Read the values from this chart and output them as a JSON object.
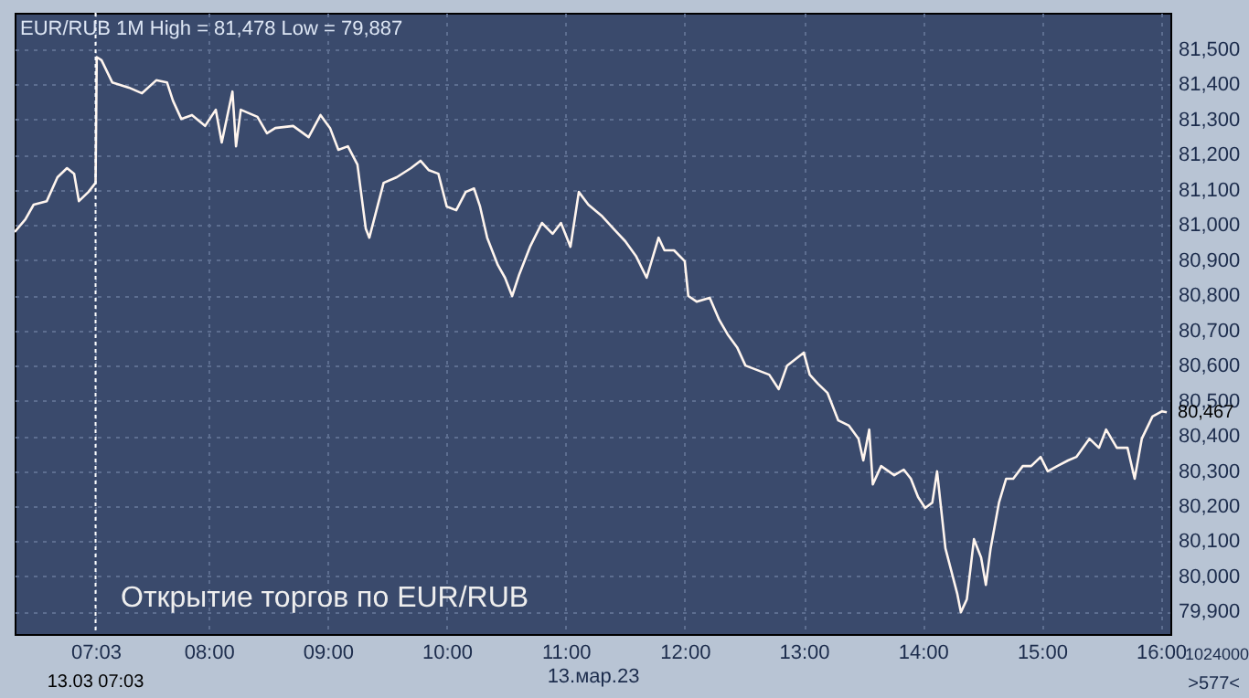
{
  "chart_data": {
    "type": "line",
    "title": "EUR/RUB 1M High = 81,478 Low = 79,887",
    "xlabel": "13.мар.23",
    "x": [
      6.37,
      6.46,
      6.53,
      6.64,
      6.73,
      6.81,
      6.87,
      6.91,
      6.99,
      7.05,
      7.06,
      7.1,
      7.19,
      7.33,
      7.44,
      7.56,
      7.65,
      7.7,
      7.77,
      7.86,
      7.97,
      8.06,
      8.11,
      8.2,
      8.23,
      8.27,
      8.41,
      8.49,
      8.56,
      8.71,
      8.84,
      8.94,
      9.02,
      9.09,
      9.17,
      9.25,
      9.32,
      9.35,
      9.41,
      9.47,
      9.58,
      9.7,
      9.78,
      9.85,
      9.93,
      10.0,
      10.08,
      10.16,
      10.23,
      10.28,
      10.34,
      10.43,
      10.49,
      10.55,
      10.61,
      10.7,
      10.8,
      10.89,
      10.96,
      11.04,
      11.11,
      11.19,
      11.3,
      11.4,
      11.5,
      11.59,
      11.68,
      11.78,
      11.83,
      11.91,
      12.0,
      12.03,
      12.1,
      12.21,
      12.29,
      12.36,
      12.44,
      12.51,
      12.71,
      12.79,
      12.86,
      13.0,
      13.05,
      13.12,
      13.2,
      13.29,
      13.38,
      13.46,
      13.5,
      13.55,
      13.58,
      13.65,
      13.76,
      13.84,
      13.9,
      13.96,
      14.02,
      14.08,
      14.12,
      14.19,
      14.23,
      14.29,
      14.32,
      14.37,
      14.43,
      14.49,
      14.53,
      14.57,
      14.64,
      14.7,
      14.76,
      14.84,
      14.91,
      14.99,
      15.05,
      15.13,
      15.22,
      15.29,
      15.4,
      15.48,
      15.54,
      15.63,
      15.72,
      15.78,
      15.84,
      15.93,
      16.01,
      16.05
    ],
    "series": [
      {
        "color": "#fff5ee",
        "values": [
          80980,
          81016,
          81058,
          81068,
          81136,
          81162,
          81146,
          81068,
          81094,
          81120,
          81478,
          81469,
          81406,
          81391,
          81375,
          81412,
          81406,
          81354,
          81302,
          81313,
          81282,
          81328,
          81235,
          81380,
          81224,
          81328,
          81308,
          81261,
          81276,
          81282,
          81250,
          81313,
          81276,
          81214,
          81224,
          81172,
          80990,
          80964,
          81042,
          81120,
          81136,
          81162,
          81183,
          81156,
          81146,
          81053,
          81042,
          81094,
          81104,
          81053,
          80964,
          80886,
          80850,
          80798,
          80860,
          80938,
          81006,
          80975,
          81006,
          80938,
          81094,
          81058,
          81027,
          80990,
          80954,
          80912,
          80850,
          80964,
          80928,
          80928,
          80897,
          80798,
          80782,
          80793,
          80730,
          80689,
          80652,
          80600,
          80574,
          80533,
          80600,
          80637,
          80574,
          80548,
          80522,
          80444,
          80429,
          80392,
          80330,
          80418,
          80262,
          80314,
          80288,
          80304,
          80278,
          80226,
          80195,
          80210,
          80299,
          80080,
          80028,
          79950,
          79898,
          79935,
          80106,
          80054,
          79976,
          80080,
          80210,
          80278,
          80278,
          80314,
          80314,
          80340,
          80299,
          80314,
          80330,
          80340,
          80392,
          80366,
          80418,
          80366,
          80366,
          80278,
          80392,
          80455,
          80470,
          80467
        ]
      }
    ],
    "xlim": [
      6.37,
      16.08
    ],
    "xticks": [
      {
        "value": 7.05,
        "label": "07:03"
      },
      {
        "value": 8,
        "label": "08:00"
      },
      {
        "value": 9,
        "label": "09:00"
      },
      {
        "value": 10,
        "label": "10:00"
      },
      {
        "value": 11,
        "label": "11:00"
      },
      {
        "value": 12,
        "label": "12:00"
      },
      {
        "value": 13,
        "label": "13:00"
      },
      {
        "value": 14,
        "label": "14:00"
      },
      {
        "value": 15,
        "label": "15:00"
      },
      {
        "value": 16,
        "label": "16:00"
      }
    ],
    "ylim": [
      79836,
      81604
    ],
    "yticks": [
      {
        "value": 79900,
        "label": "79,900"
      },
      {
        "value": 80000,
        "label": "80,000"
      },
      {
        "value": 80100,
        "label": "80,100"
      },
      {
        "value": 80200,
        "label": "80,200"
      },
      {
        "value": 80300,
        "label": "80,300"
      },
      {
        "value": 80400,
        "label": "80,400"
      },
      {
        "value": 80500,
        "label": "80,500"
      },
      {
        "value": 80600,
        "label": "80,600"
      },
      {
        "value": 80700,
        "label": "80,700"
      },
      {
        "value": 80800,
        "label": "80,800"
      },
      {
        "value": 80900,
        "label": "80,900"
      },
      {
        "value": 81000,
        "label": "81,000"
      },
      {
        "value": 81100,
        "label": "81,100"
      },
      {
        "value": 81200,
        "label": "81,200"
      },
      {
        "value": 81300,
        "label": "81,300"
      },
      {
        "value": 81400,
        "label": "81,400"
      },
      {
        "value": 81500,
        "label": "81,500"
      }
    ],
    "grid": true,
    "ref_lines": [
      {
        "axis": "x",
        "value": 7.05,
        "label": "13.03 07:03",
        "color": "#ffffff",
        "line_style": "dotted"
      }
    ],
    "annotations": [
      "Открытие торгов по EUR/RUB",
      "1024000",
      ">577<",
      {
        "text": "80,467",
        "x": 16.05,
        "y": 80467
      }
    ]
  }
}
